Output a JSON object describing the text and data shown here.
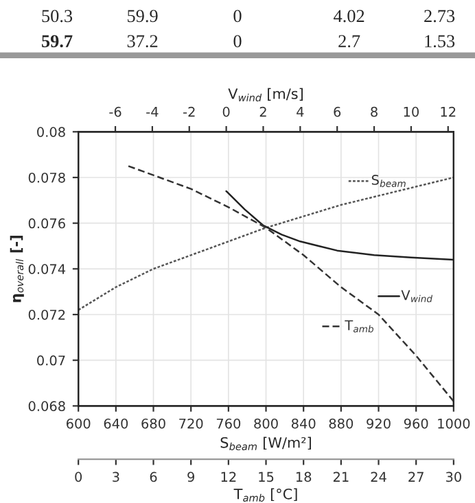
{
  "chart_data": [
    {
      "type": "line",
      "xlabel": "S$_{beam}$ [W/m²]",
      "x2label": "V$_{wind}$ [m/s]",
      "ylabel": "η$_{overall}$ [-]",
      "annotations": [
        "50.3 59.9 0 4.02 2.73",
        "59.7 37.2 0 2.7 1.53"
      ],
      "xlim": [
        600,
        1000
      ],
      "xticks": [
        600,
        640,
        680,
        720,
        760,
        800,
        840,
        880,
        920,
        960,
        1000
      ],
      "x2lim": [
        -8,
        12.3
      ],
      "x2ticks": [
        -6,
        -4,
        -2,
        0,
        2,
        4,
        6,
        8,
        10,
        12
      ],
      "ylim": [
        0.068,
        0.08
      ],
      "yticks": [
        0.068,
        0.07,
        0.072,
        0.074,
        0.076,
        0.078,
        0.08
      ],
      "grid": true,
      "legend": "right",
      "series": [
        {
          "name": "S$_{beam}$",
          "color": "#555555",
          "line_style": "dotted",
          "x": [
            600,
            640,
            680,
            720,
            760,
            800,
            840,
            880,
            920,
            960,
            1000
          ],
          "values": [
            0.0722,
            0.0732,
            0.074,
            0.0746,
            0.0752,
            0.0758,
            0.0763,
            0.0768,
            0.0772,
            0.0776,
            0.078
          ]
        },
        {
          "name": "V$_{wind}$",
          "color": "#222222",
          "line_style": "solid",
          "axis": "x2",
          "x": [
            0,
            1,
            2,
            3,
            4,
            5,
            6,
            8,
            10,
            12.3
          ],
          "values": [
            0.0774,
            0.0766,
            0.0759,
            0.0755,
            0.0752,
            0.075,
            0.0748,
            0.0746,
            0.0745,
            0.0744
          ]
        }
      ]
    },
    {
      "type": "line",
      "xlabel": "T$_{amb}$ [°C]",
      "xlim": [
        0,
        30
      ],
      "xticks": [
        0,
        3,
        6,
        9,
        12,
        15,
        18,
        21,
        24,
        27,
        30
      ],
      "ylim": [
        0.068,
        0.08
      ],
      "tick_labels": "x",
      "legend": "right",
      "series": [
        {
          "name": "T$_{amb}$",
          "color": "#333333",
          "line_style": "dashed",
          "x": [
            4,
            6,
            9,
            12,
            15,
            18,
            21,
            24,
            27,
            30
          ],
          "values": [
            0.0785,
            0.0781,
            0.0775,
            0.0767,
            0.0758,
            0.0746,
            0.0732,
            0.072,
            0.0702,
            0.0682
          ]
        }
      ]
    }
  ]
}
